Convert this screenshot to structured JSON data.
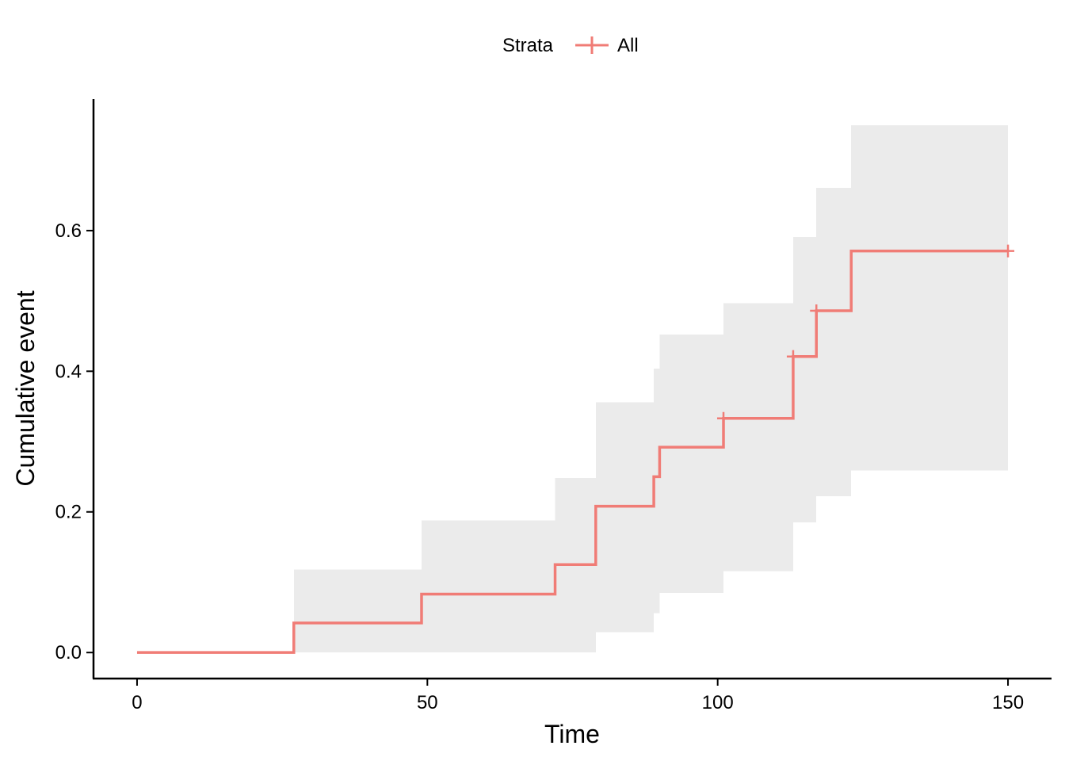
{
  "chart_data": {
    "type": "line",
    "title": "",
    "xlabel": "Time",
    "ylabel": "Cumulative event",
    "xlim": [
      -7.5,
      157.5
    ],
    "ylim": [
      -0.037,
      0.787
    ],
    "x_ticks": [
      0,
      50,
      100,
      150
    ],
    "x_tick_labels": [
      "0",
      "50",
      "100",
      "150"
    ],
    "y_ticks": [
      0.0,
      0.2,
      0.4,
      0.6
    ],
    "y_tick_labels": [
      "0.0",
      "0.2",
      "0.4",
      "0.6"
    ],
    "grid": false,
    "legend": {
      "title": "Strata",
      "placement": "top",
      "entries": [
        "All"
      ]
    },
    "series": [
      {
        "name": "All",
        "color": "#F07C76",
        "step": true,
        "x": [
          0,
          27,
          49,
          72,
          79,
          89,
          90,
          101,
          113,
          117,
          123,
          150
        ],
        "y": [
          0.0,
          0.042,
          0.083,
          0.125,
          0.208,
          0.25,
          0.292,
          0.333,
          0.421,
          0.486,
          0.571,
          0.571
        ],
        "ci_lower": [
          0.0,
          0.0,
          0.0,
          0.0,
          0.029,
          0.056,
          0.085,
          0.116,
          0.185,
          0.222,
          0.259,
          0.259
        ],
        "ci_upper": [
          0.0,
          0.118,
          0.188,
          0.248,
          0.356,
          0.404,
          0.452,
          0.497,
          0.591,
          0.661,
          0.75,
          0.75
        ],
        "censor_x": [
          101,
          113,
          117,
          150
        ],
        "censor_y": [
          0.333,
          0.421,
          0.486,
          0.571
        ]
      }
    ],
    "ci_color": "#EBEBEB"
  }
}
